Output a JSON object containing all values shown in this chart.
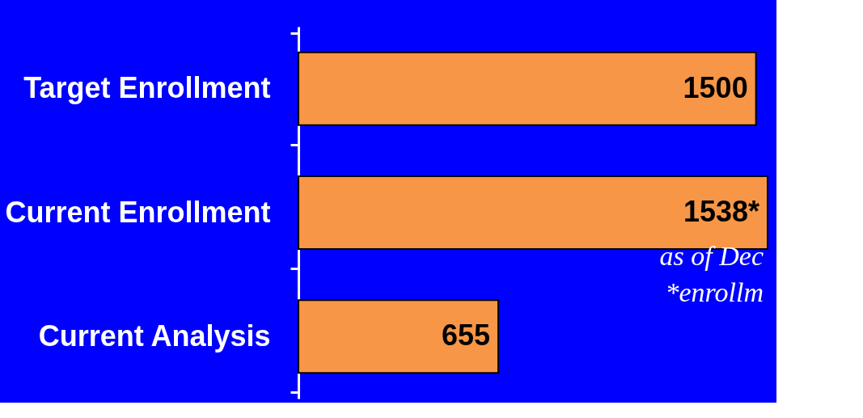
{
  "chart_data": {
    "type": "bar",
    "orientation": "horizontal",
    "categories": [
      "Target Enrollment",
      "Current Enrollment",
      "Current Analysis"
    ],
    "values": [
      1500,
      1538,
      655
    ],
    "value_labels": [
      "1500",
      "1538*",
      "655"
    ],
    "color": "#f79646",
    "annotations": [
      "as of Dec",
      "*enrollm"
    ],
    "grid": false
  }
}
